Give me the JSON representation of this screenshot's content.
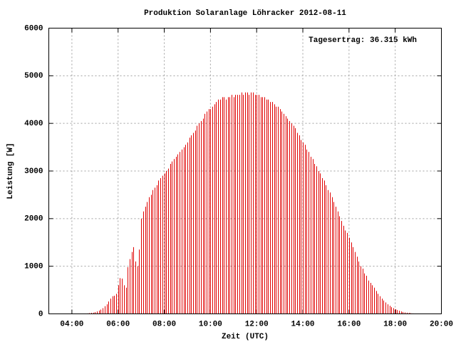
{
  "chart_data": {
    "type": "impulse",
    "title": "Produktion Solaranlage Löhracker 2012-08-11",
    "annotation": "Tagesertrag: 36.315 kWh",
    "x_label": "Zeit (UTC)",
    "y_label": "Leistung [W]",
    "color": "#e00000",
    "grid": true,
    "xlim": [
      180,
      1200
    ],
    "xticks": [
      {
        "value": 240,
        "label": "04:00"
      },
      {
        "value": 360,
        "label": "06:00"
      },
      {
        "value": 480,
        "label": "08:00"
      },
      {
        "value": 600,
        "label": "10:00"
      },
      {
        "value": 720,
        "label": "12:00"
      },
      {
        "value": 840,
        "label": "14:00"
      },
      {
        "value": 960,
        "label": "16:00"
      },
      {
        "value": 1080,
        "label": "18:00"
      },
      {
        "value": 1200,
        "label": "20:00"
      }
    ],
    "ylim": [
      0,
      6000
    ],
    "yticks": [
      0,
      1000,
      2000,
      3000,
      4000,
      5000,
      6000
    ],
    "x_start": 270,
    "x_step": 5,
    "values": [
      5,
      8,
      10,
      15,
      20,
      25,
      35,
      50,
      70,
      90,
      120,
      160,
      200,
      260,
      320,
      370,
      380,
      420,
      600,
      750,
      740,
      600,
      550,
      980,
      1150,
      1300,
      1400,
      1100,
      1000,
      1350,
      2000,
      2150,
      2250,
      2350,
      2450,
      2500,
      2600,
      2650,
      2700,
      2800,
      2850,
      2900,
      2950,
      3000,
      3050,
      3150,
      3200,
      3250,
      3300,
      3350,
      3400,
      3450,
      3500,
      3550,
      3600,
      3700,
      3750,
      3800,
      3850,
      3950,
      4000,
      4050,
      4100,
      4200,
      4250,
      4300,
      4300,
      4350,
      4400,
      4450,
      4500,
      4500,
      4550,
      4550,
      4500,
      4550,
      4550,
      4600,
      4550,
      4600,
      4600,
      4600,
      4650,
      4600,
      4650,
      4650,
      4600,
      4650,
      4650,
      4600,
      4600,
      4600,
      4550,
      4550,
      4550,
      4500,
      4500,
      4450,
      4450,
      4400,
      4350,
      4350,
      4300,
      4250,
      4200,
      4150,
      4100,
      4050,
      4000,
      3950,
      3900,
      3800,
      3750,
      3650,
      3600,
      3550,
      3450,
      3400,
      3300,
      3250,
      3150,
      3100,
      3000,
      2950,
      2850,
      2800,
      2700,
      2600,
      2550,
      2450,
      2350,
      2250,
      2150,
      2050,
      1950,
      1850,
      1750,
      1700,
      1600,
      1500,
      1400,
      1300,
      1200,
      1100,
      1000,
      950,
      850,
      800,
      700,
      650,
      600,
      550,
      480,
      420,
      370,
      320,
      280,
      240,
      200,
      170,
      140,
      120,
      100,
      80,
      65,
      50,
      40,
      30,
      25,
      20,
      15,
      10,
      8,
      5,
      3
    ]
  }
}
